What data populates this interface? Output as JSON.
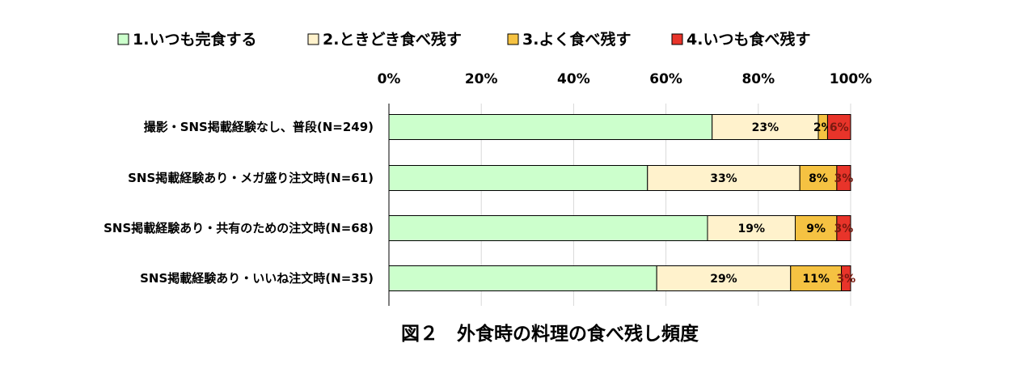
{
  "chart_data": {
    "type": "bar",
    "orientation": "horizontal",
    "stacked": true,
    "percent": true,
    "xlim": [
      0,
      100
    ],
    "x_ticks": [
      "0%",
      "20%",
      "40%",
      "60%",
      "80%",
      "100%"
    ],
    "legend": {
      "placement": "top"
    },
    "grid": true,
    "categories": [
      "撮影・SNS掲載経験なし、普段(N=249)",
      "SNS掲載経験あり・メガ盛り注文時(N=61)",
      "SNS掲載経験あり・共有のための注文時(N=68)",
      "SNS掲載経験あり・いいね注文時(N=35)"
    ],
    "series": [
      {
        "name": "1.いつも完食する",
        "color": "#CCFFCC",
        "values": [
          70,
          56,
          69,
          58
        ],
        "labels": [
          "",
          "",
          "",
          ""
        ]
      },
      {
        "name": "2.ときどき食べ残す",
        "color": "#FFF2CC",
        "values": [
          23,
          33,
          19,
          29
        ],
        "labels": [
          "23%",
          "33%",
          "19%",
          "29%"
        ]
      },
      {
        "name": "3.よく食べ残す",
        "color": "#F5C242",
        "values": [
          2,
          8,
          9,
          11
        ],
        "labels": [
          "2%",
          "8%",
          "9%",
          "11%"
        ]
      },
      {
        "name": "4.いつも食べ残す",
        "color": "#E8342A",
        "values": [
          6,
          3,
          3,
          3
        ],
        "labels": [
          "6%",
          "3%",
          "3%",
          "3%"
        ]
      }
    ],
    "caption": "図２　外食時の料理の食べ残し頻度"
  }
}
